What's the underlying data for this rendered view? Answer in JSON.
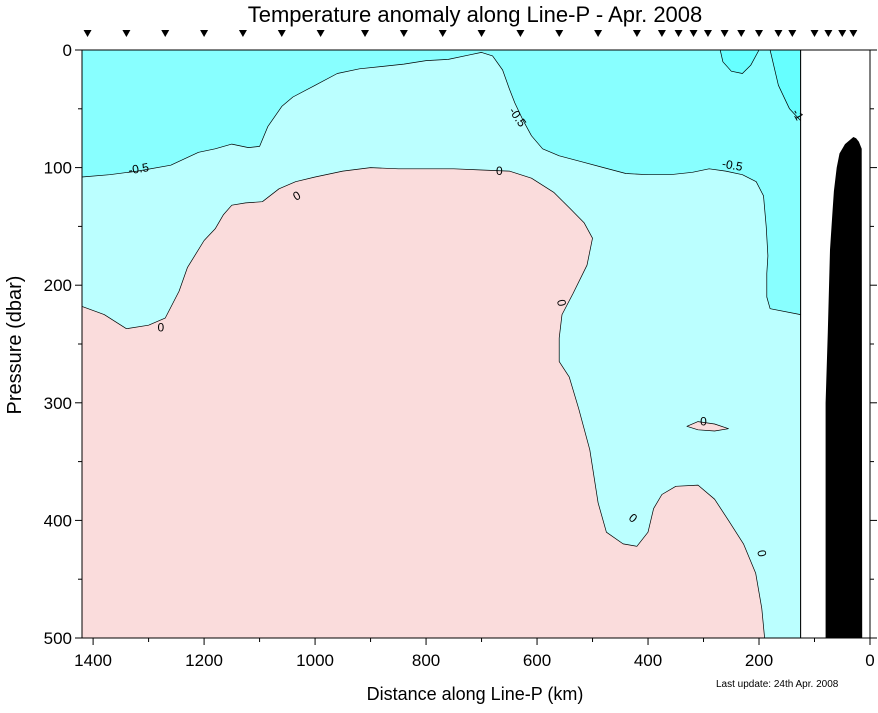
{
  "chart_data": {
    "type": "contour",
    "title": "Temperature anomaly along Line-P - Apr. 2008",
    "xlabel": "Distance along Line-P (km)",
    "ylabel": "Pressure (dbar)",
    "xlim": [
      1420,
      0
    ],
    "ylim": [
      0,
      500
    ],
    "x_reversed": true,
    "y_reversed": true,
    "xticks": [
      1400,
      1200,
      1000,
      800,
      600,
      400,
      200,
      0
    ],
    "xtick_labels": [
      "1400",
      "1200",
      "1000",
      "800",
      "600",
      "400",
      "200",
      "0"
    ],
    "yticks": [
      0,
      100,
      200,
      300,
      400,
      500
    ],
    "ytick_labels": [
      "0",
      "100",
      "200",
      "300",
      "400",
      "500"
    ],
    "grid": false,
    "data_extent_km": [
      125,
      1420
    ],
    "station_positions_km": [
      1410,
      1340,
      1270,
      1200,
      1130,
      1060,
      990,
      910,
      840,
      770,
      700,
      630,
      560,
      490,
      420,
      375,
      345,
      318,
      292,
      262,
      232,
      200,
      165,
      140,
      100,
      75,
      50,
      30
    ],
    "colors": {
      "below_minus_1": "#66ffff",
      "minus_1_to_minus_0.5": "#88ffff",
      "minus_0.5_to_0": "#bbffff",
      "above_0": "#fadcdc",
      "bathymetry": "#000000",
      "no_data": "#ffffff",
      "contour_line": "#000000"
    },
    "regions": [
      {
        "level_range": "-1 to -0.5",
        "points": [
          [
            1420,
            0
          ],
          [
            125,
            0
          ],
          [
            125,
            225
          ],
          [
            1420,
            225
          ]
        ]
      },
      {
        "level_range": "-0.5 to 0",
        "points": [
          [
            1420,
            108
          ],
          [
            1370,
            106
          ],
          [
            1320,
            103
          ],
          [
            1260,
            98
          ],
          [
            1210,
            87
          ],
          [
            1180,
            84
          ],
          [
            1150,
            80
          ],
          [
            1120,
            83
          ],
          [
            1100,
            82
          ],
          [
            1085,
            65
          ],
          [
            1060,
            48
          ],
          [
            1040,
            40
          ],
          [
            1000,
            30
          ],
          [
            960,
            20
          ],
          [
            920,
            16
          ],
          [
            880,
            14
          ],
          [
            840,
            12
          ],
          [
            800,
            9
          ],
          [
            760,
            8
          ],
          [
            720,
            4
          ],
          [
            700,
            2
          ],
          [
            680,
            5
          ],
          [
            662,
            17
          ],
          [
            650,
            33
          ],
          [
            640,
            45
          ],
          [
            625,
            60
          ],
          [
            610,
            73
          ],
          [
            590,
            84
          ],
          [
            560,
            90
          ],
          [
            520,
            95
          ],
          [
            480,
            100
          ],
          [
            440,
            105
          ],
          [
            400,
            106
          ],
          [
            360,
            106
          ],
          [
            320,
            104
          ],
          [
            290,
            101
          ],
          [
            260,
            103
          ],
          [
            230,
            106
          ],
          [
            205,
            112
          ],
          [
            192,
            124
          ],
          [
            187,
            150
          ],
          [
            184,
            175
          ],
          [
            186,
            190
          ],
          [
            186,
            210
          ],
          [
            180,
            220
          ],
          [
            125,
            225
          ],
          [
            125,
            500
          ],
          [
            1420,
            500
          ]
        ]
      },
      {
        "level_range": "0 to 0.5",
        "points": [
          [
            1420,
            218
          ],
          [
            1380,
            225
          ],
          [
            1340,
            237
          ],
          [
            1300,
            234
          ],
          [
            1270,
            228
          ],
          [
            1245,
            205
          ],
          [
            1230,
            185
          ],
          [
            1200,
            162
          ],
          [
            1180,
            152
          ],
          [
            1165,
            140
          ],
          [
            1150,
            132
          ],
          [
            1125,
            130
          ],
          [
            1095,
            129
          ],
          [
            1065,
            118
          ],
          [
            1035,
            112
          ],
          [
            1000,
            108
          ],
          [
            950,
            103
          ],
          [
            900,
            100
          ],
          [
            850,
            101
          ],
          [
            800,
            101
          ],
          [
            750,
            101
          ],
          [
            700,
            102
          ],
          [
            650,
            103
          ],
          [
            610,
            109
          ],
          [
            570,
            121
          ],
          [
            540,
            135
          ],
          [
            515,
            147
          ],
          [
            500,
            160
          ],
          [
            510,
            183
          ],
          [
            535,
            207
          ],
          [
            555,
            225
          ],
          [
            560,
            245
          ],
          [
            560,
            265
          ],
          [
            542,
            278
          ],
          [
            525,
            305
          ],
          [
            505,
            340
          ],
          [
            490,
            385
          ],
          [
            475,
            410
          ],
          [
            445,
            420
          ],
          [
            420,
            422
          ],
          [
            400,
            410
          ],
          [
            390,
            390
          ],
          [
            375,
            378
          ],
          [
            350,
            371
          ],
          [
            310,
            370
          ],
          [
            280,
            382
          ],
          [
            255,
            400
          ],
          [
            228,
            420
          ],
          [
            206,
            445
          ],
          [
            195,
            475
          ],
          [
            190,
            500
          ],
          [
            1420,
            500
          ]
        ]
      },
      {
        "level_range": "below -1",
        "points": [
          [
            295,
            0
          ],
          [
            270,
            0
          ],
          [
            265,
            10
          ],
          [
            250,
            18
          ],
          [
            230,
            20
          ],
          [
            215,
            13
          ],
          [
            200,
            0
          ]
        ]
      },
      {
        "level_range": "below -1",
        "points": [
          [
            125,
            0
          ],
          [
            125,
            60
          ],
          [
            145,
            50
          ],
          [
            165,
            30
          ],
          [
            180,
            0
          ]
        ]
      },
      {
        "level_range": "0 to 0.5",
        "points": [
          [
            330,
            320
          ],
          [
            310,
            316
          ],
          [
            280,
            318
          ],
          [
            255,
            322
          ],
          [
            280,
            324
          ],
          [
            310,
            323
          ]
        ]
      }
    ],
    "contour_labels": [
      {
        "text": "-0.5",
        "x": 1318,
        "y": 101,
        "angle": -10
      },
      {
        "text": "-0.5",
        "x": 635,
        "y": 57,
        "angle": 55
      },
      {
        "text": "-0.5",
        "x": 248,
        "y": 98,
        "angle": 10
      },
      {
        "text": "-1",
        "x": 130,
        "y": 55,
        "angle": 60
      },
      {
        "text": "0",
        "x": 1278,
        "y": 236,
        "angle": 0
      },
      {
        "text": "0",
        "x": 1033,
        "y": 124,
        "angle": -30
      },
      {
        "text": "0",
        "x": 668,
        "y": 103,
        "angle": 0
      },
      {
        "text": "0",
        "x": 556,
        "y": 215,
        "angle": 80
      },
      {
        "text": "0",
        "x": 427,
        "y": 398,
        "angle": 40
      },
      {
        "text": "0",
        "x": 300,
        "y": 316,
        "angle": 0
      },
      {
        "text": "0",
        "x": 195,
        "y": 428,
        "angle": 80
      }
    ],
    "bathymetry_outline": [
      [
        80,
        500
      ],
      [
        80,
        300
      ],
      [
        76,
        240
      ],
      [
        72,
        170
      ],
      [
        68,
        140
      ],
      [
        65,
        120
      ],
      [
        60,
        100
      ],
      [
        55,
        88
      ],
      [
        50,
        84
      ],
      [
        45,
        80
      ],
      [
        40,
        78
      ],
      [
        35,
        76
      ],
      [
        30,
        74
      ],
      [
        25,
        75
      ],
      [
        20,
        78
      ],
      [
        15,
        84
      ],
      [
        14,
        500
      ]
    ]
  },
  "footer": {
    "last_update": "Last update: 24th Apr. 2008"
  }
}
